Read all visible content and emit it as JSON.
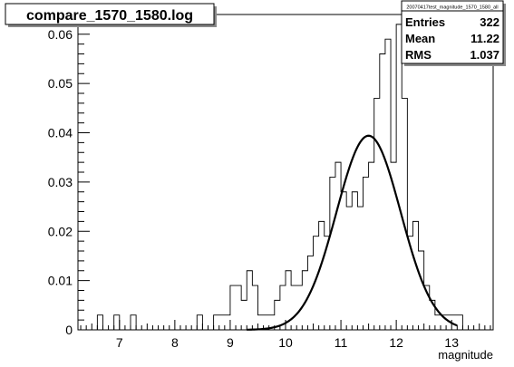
{
  "chart_data": {
    "type": "histogram",
    "title": "compare_1570_1580.log",
    "xlabel": "magnitude",
    "ylabel": "",
    "xlim": [
      6.25,
      13.75
    ],
    "ylim": [
      0,
      0.064
    ],
    "x_ticks": [
      "7",
      "8",
      "9",
      "10",
      "11",
      "12",
      "13"
    ],
    "y_ticks": [
      "0",
      "0.01",
      "0.02",
      "0.03",
      "0.04",
      "0.05",
      "0.06"
    ],
    "bin_width": 0.1,
    "x": [
      6.6,
      6.7,
      6.8,
      6.9,
      7.0,
      7.1,
      7.2,
      7.3,
      7.4,
      7.5,
      7.6,
      7.7,
      7.8,
      7.9,
      8.0,
      8.1,
      8.2,
      8.3,
      8.4,
      8.5,
      8.6,
      8.7,
      8.8,
      8.9,
      9.0,
      9.1,
      9.2,
      9.3,
      9.4,
      9.5,
      9.6,
      9.7,
      9.8,
      9.9,
      10.0,
      10.1,
      10.2,
      10.3,
      10.4,
      10.5,
      10.6,
      10.7,
      10.8,
      10.9,
      11.0,
      11.1,
      11.2,
      11.3,
      11.4,
      11.5,
      11.6,
      11.7,
      11.8,
      11.9,
      12.0,
      12.1,
      12.2,
      12.3,
      12.4,
      12.5,
      12.6,
      12.7,
      12.8,
      12.9,
      13.0,
      13.1
    ],
    "values": [
      0.003,
      0,
      0,
      0.003,
      0,
      0,
      0.003,
      0,
      0,
      0,
      0,
      0,
      0,
      0,
      0,
      0,
      0,
      0,
      0.003,
      0,
      0,
      0.003,
      0.003,
      0.003,
      0.009,
      0.009,
      0.006,
      0.012,
      0.009,
      0.003,
      0.003,
      0.003,
      0.006,
      0.009,
      0.012,
      0.009,
      0.009,
      0.012,
      0.015,
      0.019,
      0.022,
      0.019,
      0.031,
      0.034,
      0.028,
      0.025,
      0.028,
      0.025,
      0.031,
      0.034,
      0.047,
      0.056,
      0.059,
      0.034,
      0.062,
      0.047,
      0.019,
      0.022,
      0.016,
      0.009,
      0.006,
      0.003,
      0.003,
      0.003,
      0.003,
      0.003
    ],
    "fit": {
      "type": "gaussian",
      "peak": 0.0394,
      "mean": 11.5,
      "sigma": 0.58
    },
    "stats": {
      "title": "20070417test_magnitude_1570_1580_all",
      "rows": [
        {
          "label": "Entries",
          "value": "322"
        },
        {
          "label": "Mean",
          "value": "11.22"
        },
        {
          "label": "RMS",
          "value": "1.037"
        }
      ]
    },
    "grid": false,
    "legend": "top-right"
  }
}
